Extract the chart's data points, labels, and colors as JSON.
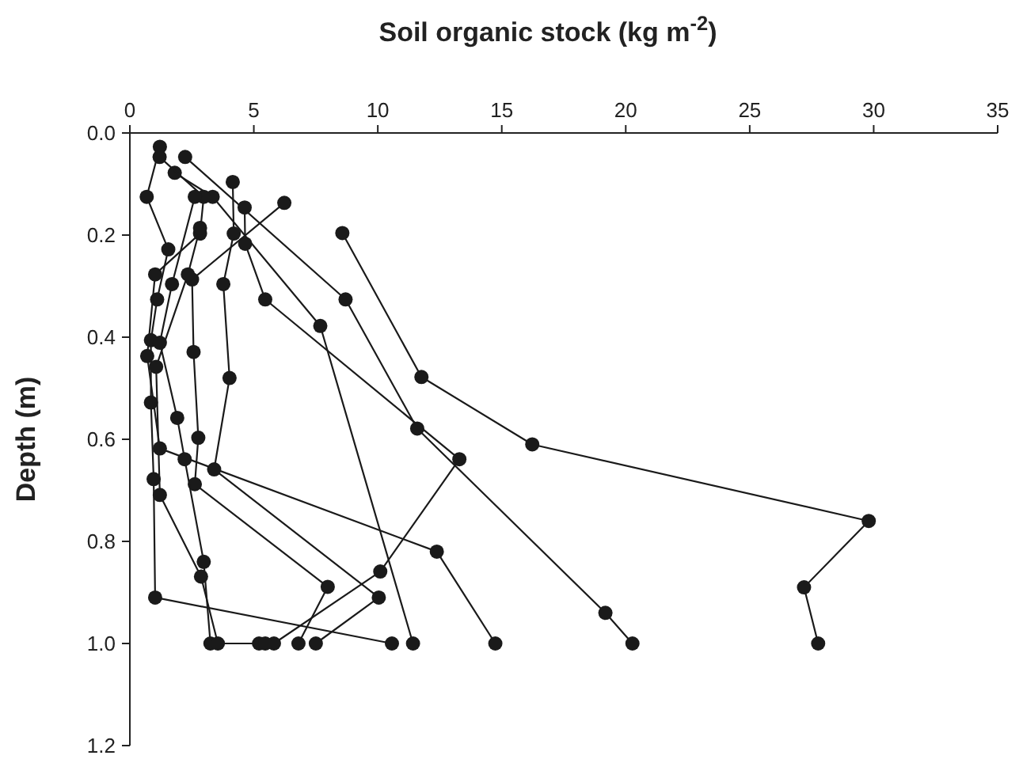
{
  "chart_data": {
    "type": "line",
    "xlabel": "Soil organic stock (kg m$^{-2}$)",
    "ylabel": "Depth (m)",
    "xlim": [
      0,
      35
    ],
    "xticks": [
      0,
      5,
      10,
      15,
      20,
      25,
      30,
      35
    ],
    "ylim": [
      1.2,
      0
    ],
    "yticks": [
      {
        "value": 0,
        "label": "0.0"
      },
      {
        "value": 0.2,
        "label": "0.2"
      },
      {
        "value": 0.4,
        "label": "0.4"
      },
      {
        "value": 0.6,
        "label": "0.6"
      },
      {
        "value": 0.8,
        "label": "0.8"
      },
      {
        "value": 1.0,
        "label": "1.0"
      },
      {
        "value": 1.2,
        "label": "1.2"
      }
    ],
    "marker": "circle",
    "line_style": "solid",
    "grid": false,
    "series": [
      {
        "color": "#1a1a1a",
        "x": [
          8.57,
          11.76,
          16.23,
          29.8,
          27.19,
          27.76
        ],
        "values": [
          0.196,
          0.478,
          0.61,
          0.76,
          0.89,
          1.0
        ]
      },
      {
        "color": "#1a1a1a",
        "x": [
          2.23,
          8.7,
          11.59,
          19.18,
          20.27
        ],
        "values": [
          0.047,
          0.326,
          0.579,
          0.94,
          1.0
        ]
      },
      {
        "color": "#1a1a1a",
        "x": [
          1.81,
          3.34,
          7.68,
          11.42
        ],
        "values": [
          0.078,
          0.125,
          0.378,
          1.0
        ]
      },
      {
        "color": "#1a1a1a",
        "x": [
          1.21,
          0.68,
          1.55,
          1.1,
          0.85,
          0.85,
          0.96,
          1.02,
          10.57
        ],
        "values": [
          0.027,
          0.125,
          0.228,
          0.326,
          0.406,
          0.528,
          0.678,
          0.91,
          1.0
        ]
      },
      {
        "color": "#1a1a1a",
        "x": [
          1.2,
          2.98,
          2.83,
          1.02,
          0.7,
          1.21,
          12.38,
          14.74
        ],
        "values": [
          0.047,
          0.125,
          0.197,
          0.277,
          0.437,
          0.618,
          0.82,
          1.0
        ]
      },
      {
        "color": "#1a1a1a",
        "x": [
          4.15,
          4.19,
          3.77,
          4.02,
          3.4,
          10.04,
          7.5
        ],
        "values": [
          0.096,
          0.197,
          0.296,
          0.48,
          0.659,
          0.91,
          1.0
        ]
      },
      {
        "color": "#1a1a1a",
        "x": [
          4.63,
          4.65,
          5.46,
          13.29,
          10.1,
          5.81
        ],
        "values": [
          0.146,
          0.217,
          0.326,
          0.639,
          0.859,
          1.0
        ]
      },
      {
        "color": "#1a1a1a",
        "x": [
          6.23,
          2.51,
          2.57,
          2.76,
          2.62,
          7.98,
          6.8
        ],
        "values": [
          0.137,
          0.287,
          0.429,
          0.597,
          0.688,
          0.889,
          1.0
        ]
      },
      {
        "color": "#1a1a1a",
        "x": [
          2.62,
          1.7,
          1.21,
          1.91,
          2.21,
          2.98,
          3.25
        ],
        "values": [
          0.125,
          0.296,
          0.411,
          0.558,
          0.639,
          0.84,
          1.0
        ]
      },
      {
        "color": "#1a1a1a",
        "x": [
          2.83,
          2.34,
          1.06,
          1.21,
          2.87,
          3.55,
          5.21,
          5.46
        ],
        "values": [
          0.186,
          0.277,
          0.458,
          0.709,
          0.869,
          1.0,
          1.0,
          1.0
        ]
      }
    ]
  }
}
